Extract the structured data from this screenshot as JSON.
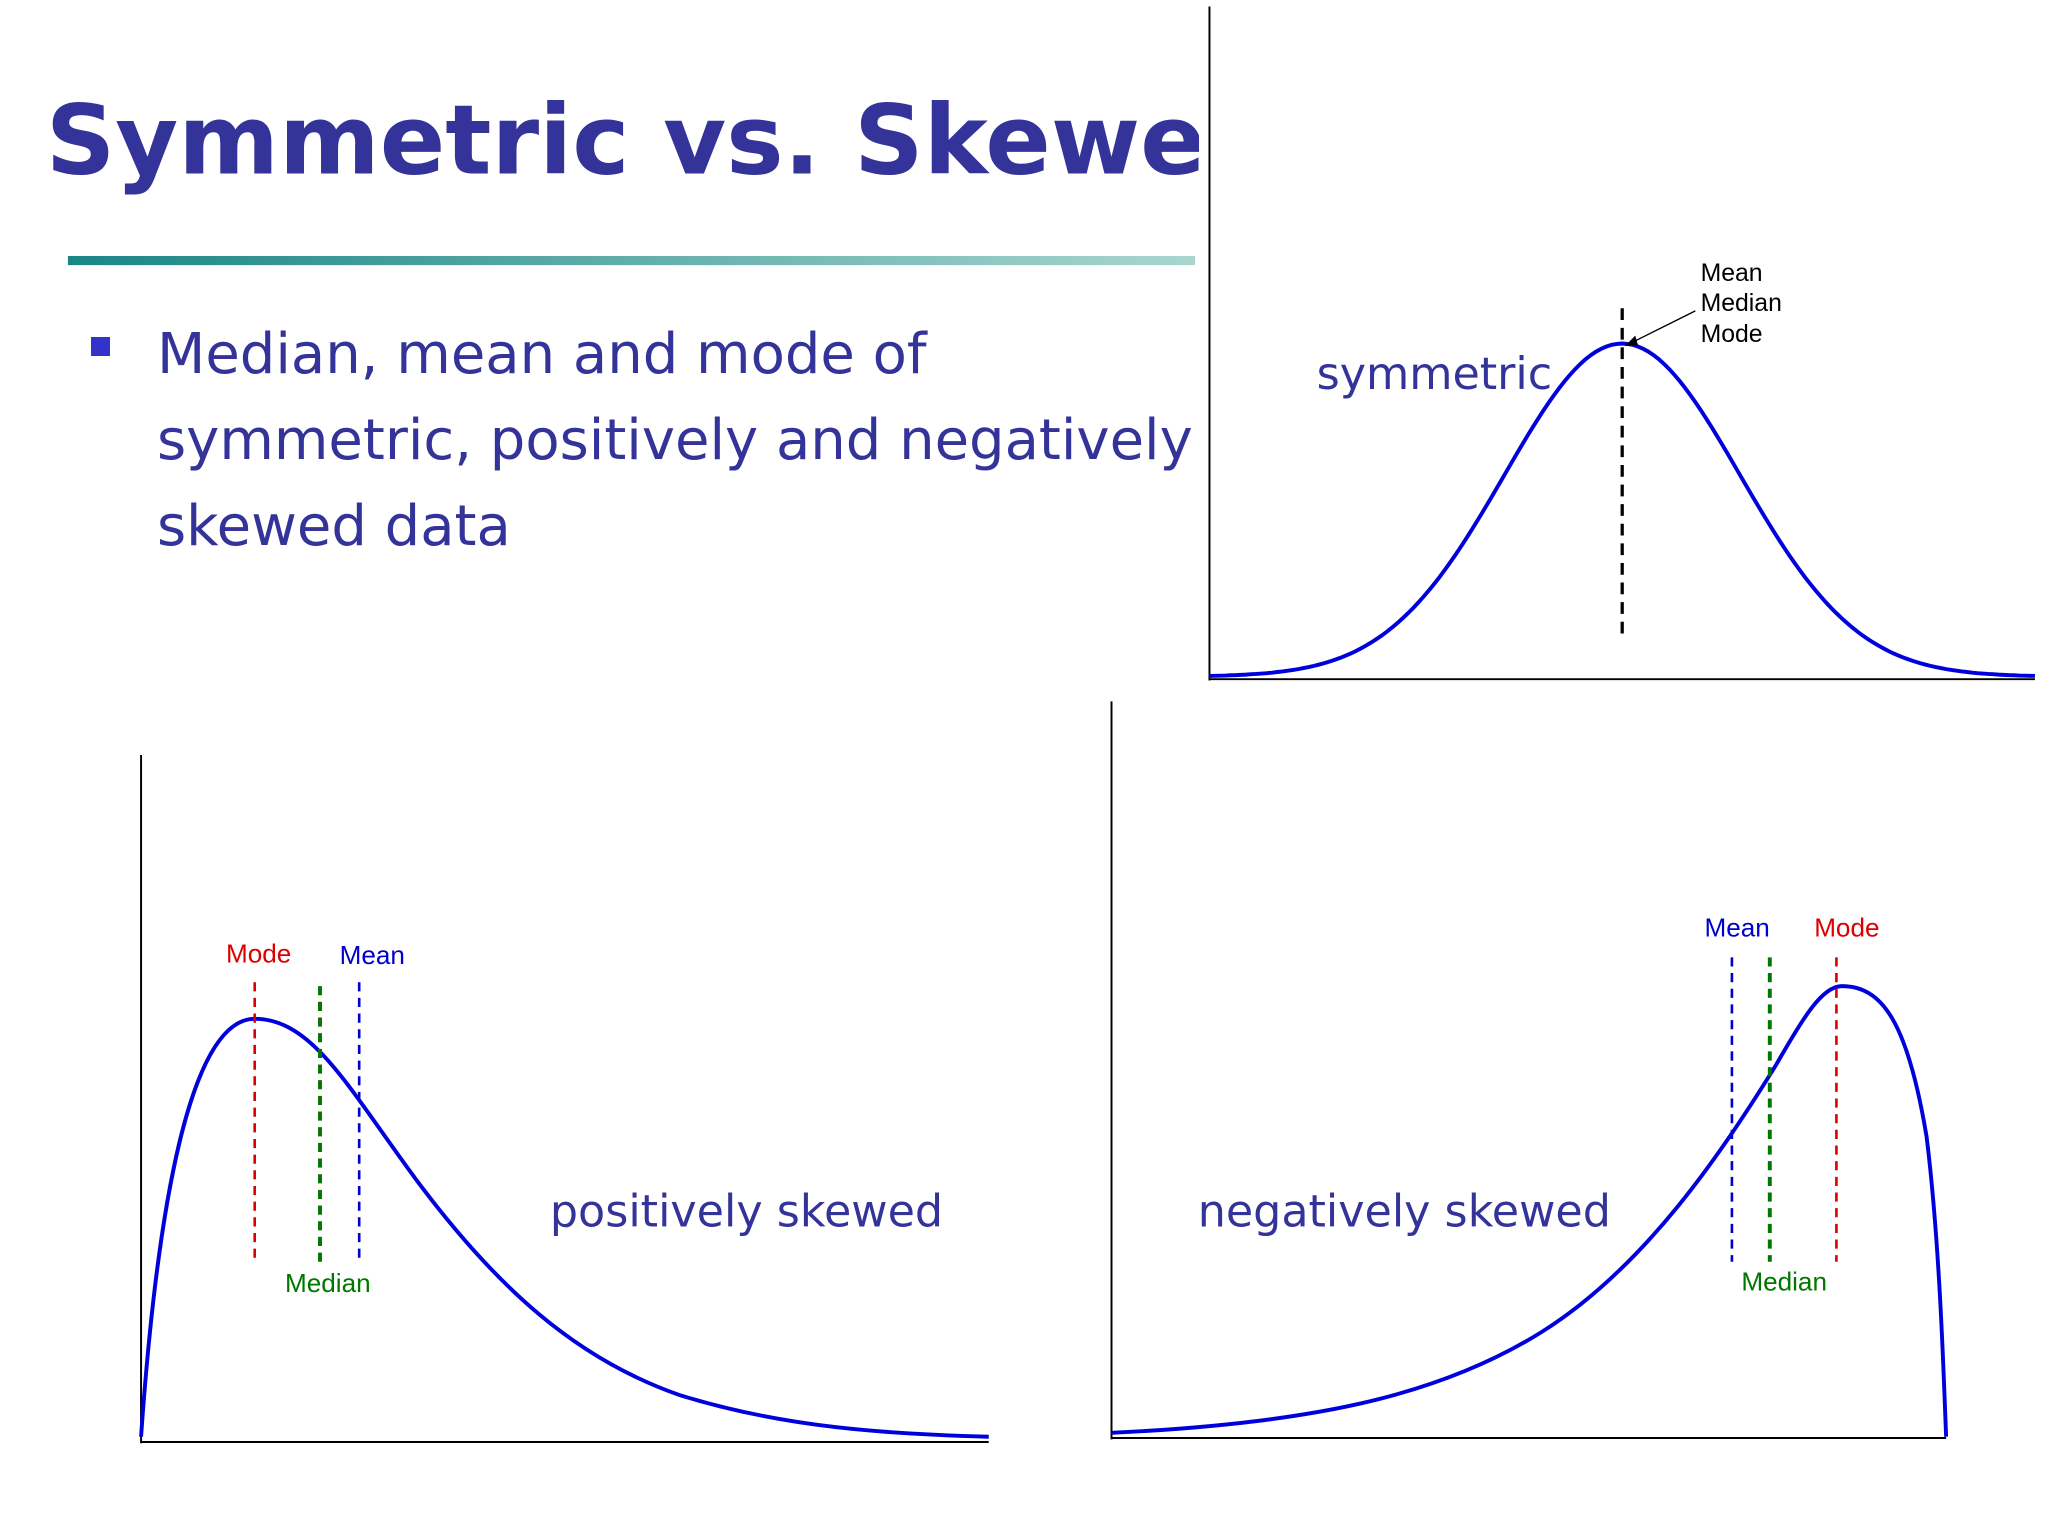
{
  "title": "Symmetric vs. Skewed Da",
  "bullets": [
    "Median, mean and mode of symmetric, positively and negatively skewed data"
  ],
  "symmetric": {
    "label": "symmetric",
    "annotation": [
      "Mean",
      "Median",
      "Mode"
    ]
  },
  "positive": {
    "label": "positively skewed",
    "mode": "Mode",
    "mean": "Mean",
    "median": "Median"
  },
  "negative": {
    "label": "negatively skewed",
    "mean": "Mean",
    "mode": "Mode",
    "median": "Median"
  }
}
